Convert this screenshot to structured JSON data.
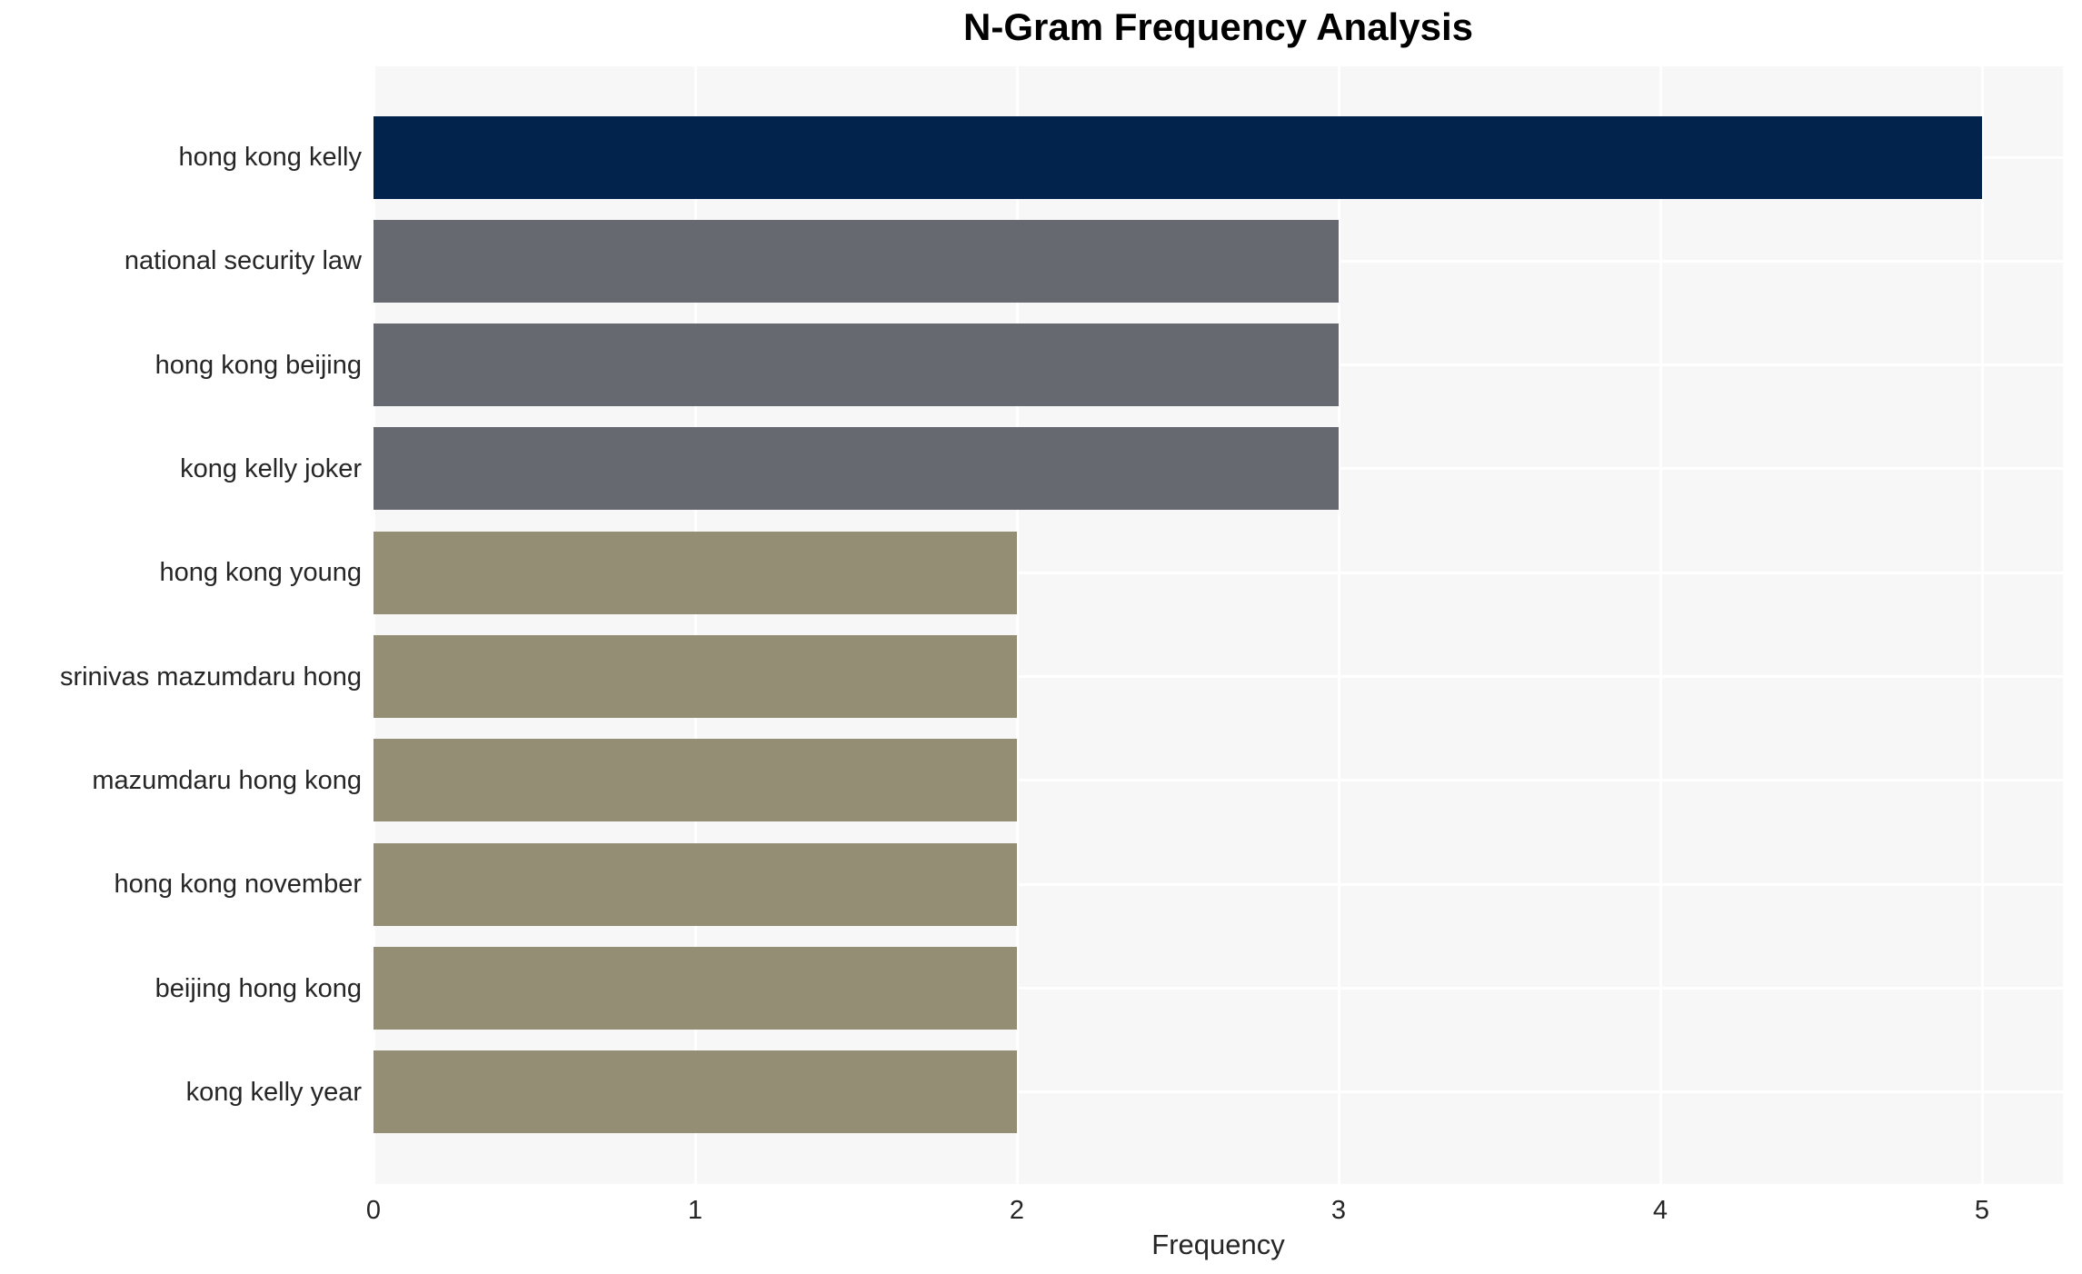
{
  "chart_data": {
    "type": "bar",
    "orientation": "horizontal",
    "title": "N-Gram Frequency Analysis",
    "xlabel": "Frequency",
    "ylabel": "",
    "categories": [
      "hong kong kelly",
      "national security law",
      "hong kong beijing",
      "kong kelly joker",
      "hong kong young",
      "srinivas mazumdaru hong",
      "mazumdaru hong kong",
      "hong kong november",
      "beijing hong kong",
      "kong kelly year"
    ],
    "values": [
      5,
      3,
      3,
      3,
      2,
      2,
      2,
      2,
      2,
      2
    ],
    "bar_colors": [
      "#02234C",
      "#666A70",
      "#666A70",
      "#666A70",
      "#948E74",
      "#948E74",
      "#948E74",
      "#948E74",
      "#948E74",
      "#948E74"
    ],
    "x_ticks": [
      "0",
      "1",
      "2",
      "3",
      "4",
      "5"
    ],
    "xlim": [
      0,
      5.25
    ],
    "grid": true,
    "legend": false,
    "plot_background": "#F7F7F7",
    "grid_color": "#FFFFFF",
    "text_color": "#262626"
  }
}
